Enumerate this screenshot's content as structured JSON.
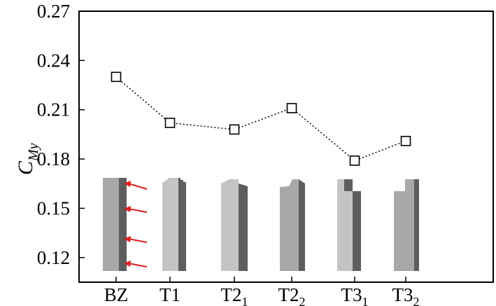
{
  "chart_data": {
    "type": "line",
    "categories": [
      {
        "base": "BZ",
        "sub": ""
      },
      {
        "base": "T1",
        "sub": ""
      },
      {
        "base": "T2",
        "sub": "1"
      },
      {
        "base": "T2",
        "sub": "2"
      },
      {
        "base": "T3",
        "sub": "1"
      },
      {
        "base": "T3",
        "sub": "2"
      }
    ],
    "series": [
      {
        "values": [
          0.23,
          0.202,
          0.198,
          0.211,
          0.179,
          0.191
        ]
      }
    ],
    "ylabel": {
      "main": "C",
      "sub": "My"
    },
    "ylim": [
      0.105,
      0.27
    ],
    "yticks": [
      0.12,
      0.15,
      0.18,
      0.21,
      0.24,
      0.27
    ],
    "ytick_labels": [
      "0.12",
      "0.15",
      "0.18",
      "0.21",
      "0.24",
      "0.27"
    ],
    "marker": "open-square",
    "line_style": "dotted",
    "grid": false,
    "legend": "none",
    "illustrations": "building-model-shapes",
    "colors": {
      "light_face": "#c4c4c4",
      "mid_face": "#a8a8a8",
      "dark_face": "#5e5e5e",
      "arrow": "#e01e1e",
      "line": "#000000"
    }
  }
}
